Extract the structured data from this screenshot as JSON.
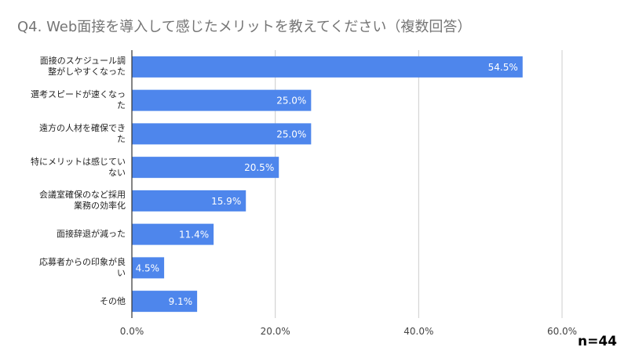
{
  "chart_data": {
    "type": "bar",
    "orientation": "horizontal",
    "title": "Q4. Web面接を導入して感じたメリットを教えてください（複数回答）",
    "categories": [
      [
        "面接のスケジュール調",
        "整がしやすくなった"
      ],
      [
        "選考スピードが速くなっ",
        "た"
      ],
      [
        "遠方の人材を確保でき",
        "た"
      ],
      [
        "特にメリットは感じてい",
        "ない"
      ],
      [
        "会議室確保のなど採用",
        "業務の効率化"
      ],
      [
        "面接辞退が減った"
      ],
      [
        "応募者からの印象が良",
        "い"
      ],
      [
        "その他"
      ]
    ],
    "values": [
      54.5,
      25.0,
      25.0,
      20.5,
      15.9,
      11.4,
      4.5,
      9.1
    ],
    "data_labels": [
      "54.5%",
      "25.0%",
      "25.0%",
      "20.5%",
      "15.9%",
      "11.4%",
      "4.5%",
      "9.1%"
    ],
    "xlim": [
      0,
      60
    ],
    "x_ticks": [
      "0.0%",
      "20.0%",
      "40.0%",
      "60.0%"
    ],
    "grid": true,
    "bar_color": "#4e86ec",
    "note": "n=44"
  }
}
